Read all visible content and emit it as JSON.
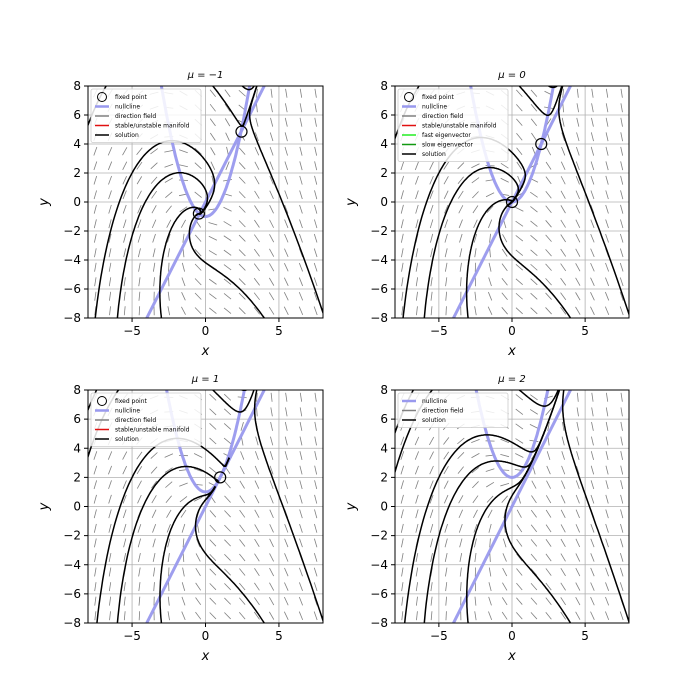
{
  "chart_data": [
    {
      "type": "phase-portrait",
      "title": "μ = −1",
      "mu": -1,
      "xlabel": "x",
      "ylabel": "y",
      "xlim": [
        -8,
        8
      ],
      "ylim": [
        -8,
        8
      ],
      "xticks": [
        -5,
        0,
        5
      ],
      "yticks": [
        -8,
        -6,
        -4,
        -2,
        0,
        2,
        4,
        6,
        8
      ],
      "grid": true,
      "legend_position": "top-left",
      "legend": [
        "fixed point",
        "nullcline",
        "direction field",
        "stable/unstable manifold",
        "solution"
      ],
      "fixed_points": [
        {
          "x": -0.45,
          "y": -0.8
        },
        {
          "x": 2.45,
          "y": 4.85
        }
      ]
    },
    {
      "type": "phase-portrait",
      "title": "μ = 0",
      "mu": 0,
      "xlabel": "x",
      "ylabel": "y",
      "xlim": [
        -8,
        8
      ],
      "ylim": [
        -8,
        8
      ],
      "xticks": [
        -5,
        0,
        5
      ],
      "yticks": [
        -8,
        -6,
        -4,
        -2,
        0,
        2,
        4,
        6,
        8
      ],
      "grid": true,
      "legend_position": "top-left",
      "legend": [
        "fixed point",
        "nullcline",
        "direction field",
        "stable/unstable manifold",
        "fast eigenvector",
        "slow eigenvector",
        "solution"
      ],
      "fixed_points": [
        {
          "x": 0,
          "y": 0
        },
        {
          "x": 2,
          "y": 4
        }
      ]
    },
    {
      "type": "phase-portrait",
      "title": "μ = 1",
      "mu": 1,
      "xlabel": "x",
      "ylabel": "y",
      "xlim": [
        -8,
        8
      ],
      "ylim": [
        -8,
        8
      ],
      "xticks": [
        -5,
        0,
        5
      ],
      "yticks": [
        -8,
        -6,
        -4,
        -2,
        0,
        2,
        4,
        6,
        8
      ],
      "grid": true,
      "legend_position": "top-left",
      "legend": [
        "fixed point",
        "nullcline",
        "direction field",
        "stable/unstable manifold",
        "solution"
      ],
      "fixed_points": [
        {
          "x": 1,
          "y": 2
        }
      ]
    },
    {
      "type": "phase-portrait",
      "title": "μ = 2",
      "mu": 2,
      "xlabel": "x",
      "ylabel": "y",
      "xlim": [
        -8,
        8
      ],
      "ylim": [
        -8,
        8
      ],
      "xticks": [
        -5,
        0,
        5
      ],
      "yticks": [
        -8,
        -6,
        -4,
        -2,
        0,
        2,
        4,
        6,
        8
      ],
      "grid": true,
      "legend_position": "top-left",
      "legend": [
        "nullcline",
        "direction field",
        "solution"
      ],
      "fixed_points": []
    }
  ],
  "colors": {
    "nullcline": "#9999ee",
    "direction_field": "#808080",
    "manifold": "#e01010",
    "fast_eigenvector": "#22ee22",
    "slow_eigenvector": "#119911",
    "solution": "#000000",
    "grid": "#b0b0b0"
  }
}
